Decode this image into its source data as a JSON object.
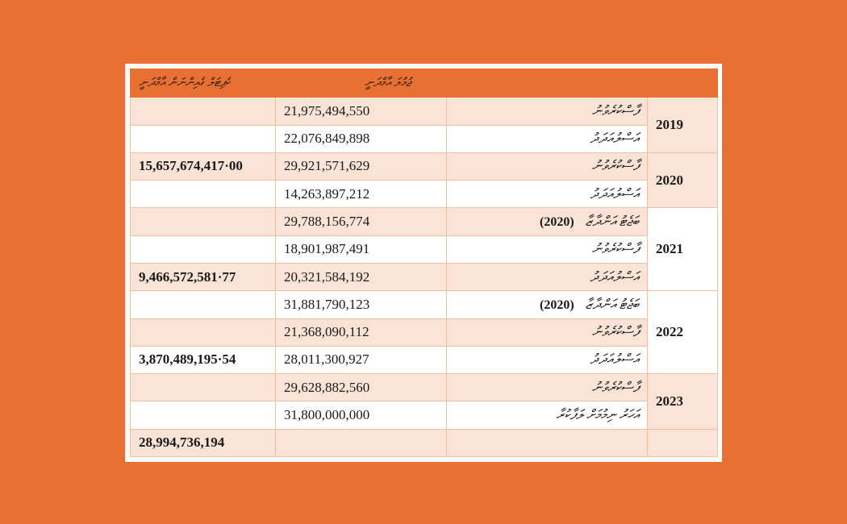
{
  "header": {
    "total_label": "ކެޕިޓަލް ގެއިންނަން އާމްދަނީ",
    "amount_label": "ޖުމުލަ އާމްދަނީ"
  },
  "labels": {
    "approved": "ފާސްކުރެވުނު",
    "actual": "އަސްލުއަދަދު",
    "revised": "ބަޖެޓު އަންދާޒާ",
    "projected": "އަހަރު ނިމުމަށް ލަފާކުރާ"
  },
  "years": [
    "2019",
    "2020",
    "2021",
    "2022",
    "2023"
  ],
  "rows": [
    {
      "year_index": 0,
      "label_key": "approved",
      "amount": "21,975,494,550",
      "total": ""
    },
    {
      "year_index": 0,
      "label_key": "actual",
      "amount": "22,076,849,898",
      "total": ""
    },
    {
      "year_index": 1,
      "label_key": "approved",
      "amount": "29,921,571,629",
      "total": "15,657,674,417·00"
    },
    {
      "year_index": 1,
      "label_key": "actual",
      "amount": "14,263,897,212",
      "total": ""
    },
    {
      "year_index": 2,
      "label_key": "revised",
      "ref_year": "(2020)",
      "amount": "29,788,156,774",
      "total": ""
    },
    {
      "year_index": 2,
      "label_key": "approved",
      "amount": "18,901,987,491",
      "total": ""
    },
    {
      "year_index": 2,
      "label_key": "actual",
      "amount": "20,321,584,192",
      "total": "9,466,572,581·77"
    },
    {
      "year_index": 3,
      "label_key": "revised",
      "ref_year": "(2020)",
      "amount": "31,881,790,123",
      "total": ""
    },
    {
      "year_index": 3,
      "label_key": "approved",
      "amount": "21,368,090,112",
      "total": ""
    },
    {
      "year_index": 3,
      "label_key": "actual",
      "amount": "28,011,300,927",
      "total": "3,870,489,195·54"
    },
    {
      "year_index": 4,
      "label_key": "approved",
      "amount": "29,628,882,560",
      "total": ""
    },
    {
      "year_index": 4,
      "label_key": "projected",
      "amount": "31,800,000,000",
      "total": ""
    }
  ],
  "grand_total": "28,994,736,194",
  "colors": {
    "background": "#E87033",
    "row_shade": "#FBE3D6",
    "border": "#F4C0A4"
  }
}
